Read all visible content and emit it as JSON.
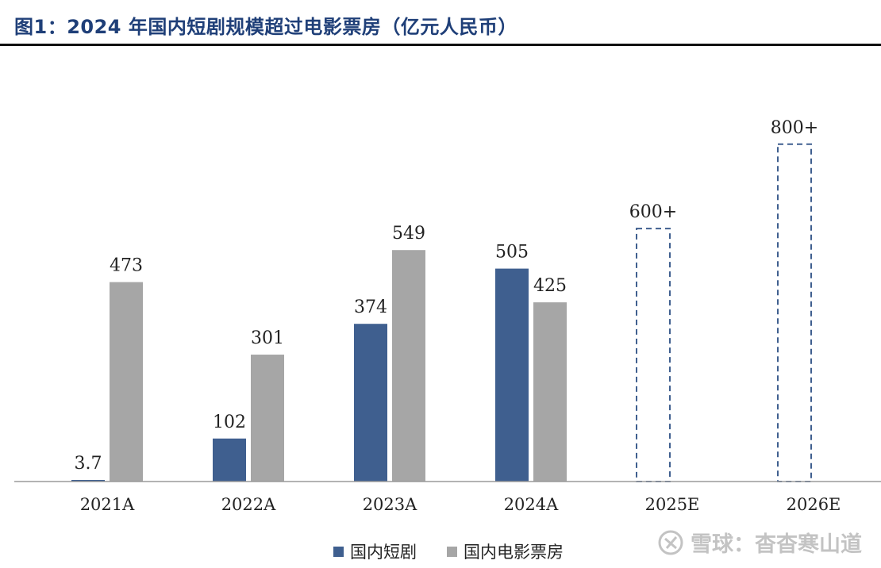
{
  "title": "图1：2024 年国内短剧规模超过电影票房（亿元人民币）",
  "watermark": {
    "text": "雪球：杳杳寒山道",
    "icon": "snowball-logo-icon"
  },
  "colors": {
    "short_drama": "#3f5f8f",
    "box_office": "#a6a6a6",
    "estimate_outline": "#3f5f8f"
  },
  "chart_data": {
    "type": "bar",
    "categories": [
      "2021A",
      "2022A",
      "2023A",
      "2024A",
      "2025E",
      "2026E"
    ],
    "series": [
      {
        "name": "国内短剧",
        "values": [
          3.7,
          102,
          374,
          505,
          600,
          800
        ],
        "labels": [
          "3.7",
          "102",
          "374",
          "505",
          "600+",
          "800+"
        ],
        "estimated": [
          false,
          false,
          false,
          false,
          true,
          true
        ]
      },
      {
        "name": "国内电影票房",
        "values": [
          473,
          301,
          549,
          425,
          null,
          null
        ],
        "labels": [
          "473",
          "301",
          "549",
          "425",
          "",
          ""
        ]
      }
    ],
    "ylim": [
      0,
      900
    ],
    "grid": false,
    "legend_position": "bottom",
    "xlabel": "",
    "ylabel": ""
  }
}
